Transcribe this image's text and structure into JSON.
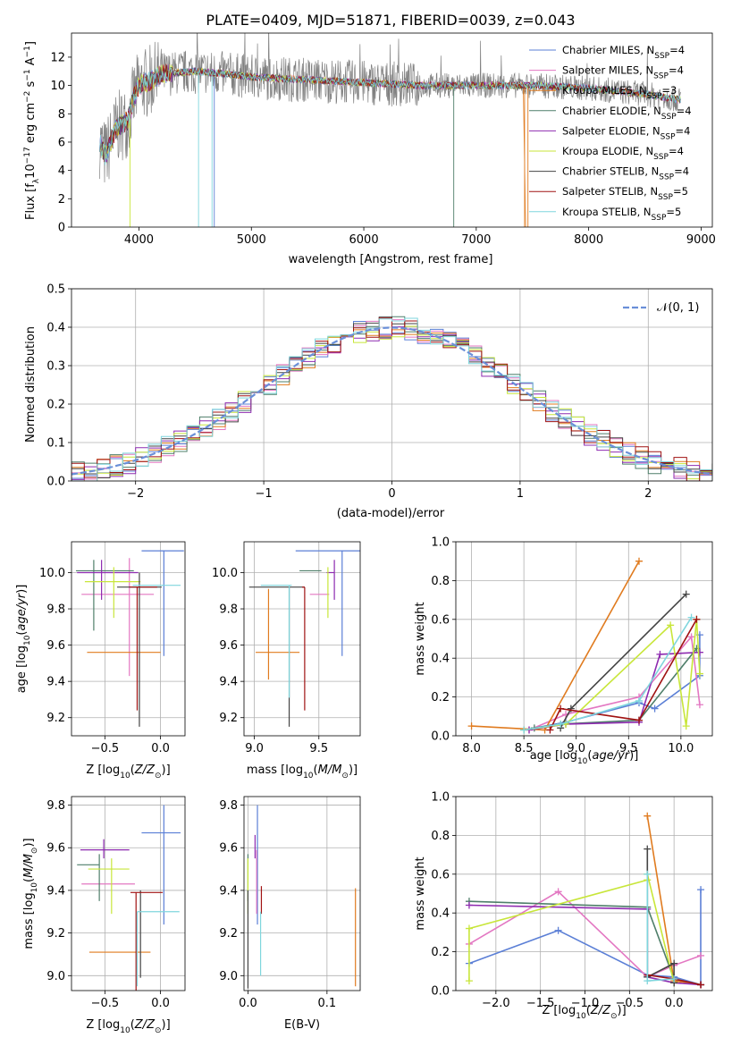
{
  "figure": {
    "title": "PLATE=0409, MJD=51871, FIBERID=0039, z=0.043"
  },
  "palette": {
    "axis": "#000000",
    "grid": "#b0b0b0",
    "normal": "#6a8fd8"
  },
  "models": [
    {
      "name": "Chabrier MILES, N",
      "sub": "SSP",
      "suffix": "=4",
      "color": "#5b7fd6"
    },
    {
      "name": "Salpeter MILES, N",
      "sub": "SSP",
      "suffix": "=4",
      "color": "#e377c2"
    },
    {
      "name": "Kroupa MILES, N",
      "sub": "SSP",
      "suffix": "=3",
      "color": "#e07b1f"
    },
    {
      "name": "Chabrier ELODIE, N",
      "sub": "SSP",
      "suffix": "=4",
      "color": "#4f7f6a"
    },
    {
      "name": "Salpeter ELODIE, N",
      "sub": "SSP",
      "suffix": "=4",
      "color": "#8e2bb0"
    },
    {
      "name": "Kroupa ELODIE, N",
      "sub": "SSP",
      "suffix": "=4",
      "color": "#c8e63a"
    },
    {
      "name": "Chabrier STELIB, N",
      "sub": "SSP",
      "suffix": "=4",
      "color": "#444444"
    },
    {
      "name": "Salpeter STELIB, N",
      "sub": "SSP",
      "suffix": "=5",
      "color": "#a01212"
    },
    {
      "name": "Kroupa STELIB, N",
      "sub": "SSP",
      "suffix": "=5",
      "color": "#7fd6dd"
    }
  ],
  "chart_data": [
    {
      "id": "spectrum",
      "type": "line",
      "xlabel": "wavelength [Angstrom, rest frame]",
      "ylabel": "Flux [f_λ 10^-17 erg cm^-2 s^-1 A^-1]",
      "xlim": [
        3400,
        9100
      ],
      "ylim": [
        0,
        13.7
      ],
      "xticks": [
        4000,
        5000,
        6000,
        7000,
        8000,
        9000
      ],
      "yticks": [
        0,
        2,
        4,
        6,
        8,
        10,
        12
      ],
      "grid": false,
      "legend_position": "upper right",
      "series_note": "observed spectrum (grey) with nine model fits; continuum ~4 at 3650 Å rising to ~10.5-11 at 4200-5000 Å then ~10-9 to 8800 Å",
      "continuum": [
        [
          3650,
          6.0
        ],
        [
          3700,
          5.0
        ],
        [
          3800,
          7.0
        ],
        [
          3900,
          7.5
        ],
        [
          3950,
          9.0
        ],
        [
          4000,
          10.0
        ],
        [
          4100,
          10.3
        ],
        [
          4200,
          10.8
        ],
        [
          4500,
          11.0
        ],
        [
          4800,
          10.8
        ],
        [
          5000,
          10.6
        ],
        [
          5500,
          10.4
        ],
        [
          6000,
          10.2
        ],
        [
          6500,
          10.0
        ],
        [
          7000,
          10.0
        ],
        [
          7500,
          10.0
        ],
        [
          8000,
          9.8
        ],
        [
          8500,
          9.4
        ],
        [
          8800,
          9.0
        ]
      ]
    },
    {
      "id": "residuals",
      "type": "histogram",
      "xlabel": "(data-model)/error",
      "ylabel": "Normed distribution",
      "xlim": [
        -2.5,
        2.5
      ],
      "ylim": [
        0,
        0.5
      ],
      "xticks": [
        -2,
        -1,
        0,
        1,
        2
      ],
      "yticks": [
        0.0,
        0.1,
        0.2,
        0.3,
        0.4,
        0.5
      ],
      "grid": true,
      "legend": [
        "𝒩(0, 1)"
      ],
      "legend_position": "upper right",
      "bin_width": 0.1,
      "reference": "standard normal pdf"
    },
    {
      "id": "z_age",
      "type": "errorbar",
      "xlabel": "Z [log10(Z/Z⊙)]",
      "ylabel": "age [log10(age/yr)]",
      "xlim": [
        -0.8,
        0.22
      ],
      "ylim": [
        9.1,
        10.17
      ],
      "xticks": [
        -0.5,
        0.0
      ],
      "yticks": [
        9.2,
        9.4,
        9.6,
        9.8,
        10.0
      ],
      "grid": true,
      "points": [
        {
          "m": 0,
          "x": 0.03,
          "xerr": [
            0.2,
            0.18
          ],
          "y": 10.12,
          "yerr": [
            0.58,
            0.0
          ]
        },
        {
          "m": 1,
          "x": -0.28,
          "xerr": [
            0.43,
            0.22
          ],
          "y": 9.88,
          "yerr": [
            0.45,
            0.2
          ]
        },
        {
          "m": 2,
          "x": -0.26,
          "xerr": [
            0.4,
            0.26
          ],
          "y": 9.56,
          "yerr": [
            0.0,
            0.0
          ]
        },
        {
          "m": 3,
          "x": -0.6,
          "xerr": [
            0.16,
            0.36
          ],
          "y": 10.01,
          "yerr": [
            0.33,
            0.06
          ]
        },
        {
          "m": 4,
          "x": -0.53,
          "xerr": [
            0.22,
            0.33
          ],
          "y": 10.0,
          "yerr": [
            0.15,
            0.07
          ]
        },
        {
          "m": 5,
          "x": -0.42,
          "xerr": [
            0.26,
            0.24
          ],
          "y": 9.95,
          "yerr": [
            0.2,
            0.08
          ]
        },
        {
          "m": 6,
          "x": -0.19,
          "xerr": [
            0.2,
            0.2
          ],
          "y": 9.92,
          "yerr": [
            0.77,
            0.08
          ]
        },
        {
          "m": 7,
          "x": -0.21,
          "xerr": [
            0.07,
            0.18
          ],
          "y": 9.92,
          "yerr": [
            0.68,
            0.0
          ]
        },
        {
          "m": 8,
          "x": -0.25,
          "xerr": [
            0.0,
            0.43
          ],
          "y": 9.93,
          "yerr": [
            0.0,
            0.0
          ]
        }
      ]
    },
    {
      "id": "mass_age",
      "type": "errorbar",
      "xlabel": "mass [log10(M/M⊙)]",
      "ylabel": "",
      "xlim": [
        8.92,
        9.82
      ],
      "ylim": [
        9.1,
        10.17
      ],
      "xticks": [
        9.0,
        9.5
      ],
      "yticks": [
        9.2,
        9.4,
        9.6,
        9.8,
        10.0
      ],
      "grid": true,
      "points": [
        {
          "m": 0,
          "x": 9.68,
          "xerr": [
            0.36,
            0.15
          ],
          "y": 10.12,
          "yerr": [
            0.58,
            0.0
          ]
        },
        {
          "m": 1,
          "x": 9.55,
          "xerr": [
            0.12,
            0.03
          ],
          "y": 9.88,
          "yerr": [
            0.0,
            0.0
          ]
        },
        {
          "m": 2,
          "x": 9.11,
          "xerr": [
            0.1,
            0.24
          ],
          "y": 9.56,
          "yerr": [
            0.15,
            0.35
          ]
        },
        {
          "m": 3,
          "x": 9.52,
          "xerr": [
            0.17,
            0.0
          ],
          "y": 10.01,
          "yerr": [
            0.0,
            0.0
          ]
        },
        {
          "m": 4,
          "x": 9.62,
          "xerr": [
            0.06,
            0.0
          ],
          "y": 10.0,
          "yerr": [
            0.15,
            0.07
          ]
        },
        {
          "m": 5,
          "x": 9.57,
          "xerr": [
            0.0,
            0.0
          ],
          "y": 9.95,
          "yerr": [
            0.2,
            0.08
          ]
        },
        {
          "m": 6,
          "x": 9.27,
          "xerr": [
            0.31,
            0.12
          ],
          "y": 9.92,
          "yerr": [
            0.77,
            0.0
          ]
        },
        {
          "m": 7,
          "x": 9.39,
          "xerr": [
            0.02,
            0.0
          ],
          "y": 9.92,
          "yerr": [
            0.68,
            0.0
          ]
        },
        {
          "m": 8,
          "x": 9.27,
          "xerr": [
            0.22,
            0.02
          ],
          "y": 9.93,
          "yerr": [
            0.62,
            0.0
          ]
        }
      ]
    },
    {
      "id": "age_weight",
      "type": "line",
      "xlabel": "age [log10(age/yr)]",
      "ylabel": "mass weight",
      "xlim": [
        7.85,
        10.3
      ],
      "ylim": [
        0,
        1.0
      ],
      "xticks": [
        8.0,
        8.5,
        9.0,
        9.5,
        10.0
      ],
      "yticks": [
        0.0,
        0.2,
        0.4,
        0.6,
        0.8,
        1.0
      ],
      "grid": true,
      "series": [
        {
          "m": 0,
          "x": [
            8.5,
            8.9,
            9.6,
            9.75,
            10.18,
            10.18
          ],
          "y": [
            0.03,
            0.07,
            0.17,
            0.14,
            0.31,
            0.52
          ]
        },
        {
          "m": 1,
          "x": [
            8.55,
            8.9,
            9.6,
            10.1,
            10.18
          ],
          "y": [
            0.03,
            0.11,
            0.2,
            0.51,
            0.16
          ]
        },
        {
          "m": 2,
          "x": [
            8.0,
            8.7,
            9.6
          ],
          "y": [
            0.05,
            0.03,
            0.9
          ]
        },
        {
          "m": 3,
          "x": [
            8.6,
            8.85,
            9.6,
            10.15
          ],
          "y": [
            0.04,
            0.06,
            0.08,
            0.45
          ]
        },
        {
          "m": 4,
          "x": [
            8.55,
            8.9,
            9.6,
            9.8,
            10.18
          ],
          "y": [
            0.03,
            0.06,
            0.07,
            0.42,
            0.43
          ]
        },
        {
          "m": 5,
          "x": [
            8.5,
            8.9,
            9.9,
            10.05,
            10.15,
            10.18
          ],
          "y": [
            0.03,
            0.06,
            0.57,
            0.05,
            0.6,
            0.32
          ]
        },
        {
          "m": 6,
          "x": [
            8.85,
            8.95,
            10.05
          ],
          "y": [
            0.04,
            0.14,
            0.73
          ]
        },
        {
          "m": 7,
          "x": [
            8.75,
            8.85,
            9.6,
            10.15
          ],
          "y": [
            0.03,
            0.14,
            0.08,
            0.6
          ]
        },
        {
          "m": 8,
          "x": [
            8.5,
            8.85,
            9.6,
            10.1
          ],
          "y": [
            0.03,
            0.06,
            0.18,
            0.61
          ]
        }
      ]
    },
    {
      "id": "z_mass",
      "type": "errorbar",
      "xlabel": "Z [log10(Z/Z⊙)]",
      "ylabel": "mass [log10(M/M⊙)]",
      "xlim": [
        -0.8,
        0.22
      ],
      "ylim": [
        8.93,
        9.84
      ],
      "xticks": [
        -0.5,
        0.0
      ],
      "yticks": [
        9.0,
        9.2,
        9.4,
        9.6,
        9.8
      ],
      "grid": true,
      "points": [
        {
          "m": 0,
          "x": 0.03,
          "xerr": [
            0.2,
            0.15
          ],
          "y": 9.67,
          "yerr": [
            0.43,
            0.13
          ]
        },
        {
          "m": 1,
          "x": -0.45,
          "xerr": [
            0.26,
            0.22
          ],
          "y": 9.43,
          "yerr": [
            0.0,
            0.0
          ]
        },
        {
          "m": 2,
          "x": -0.26,
          "xerr": [
            0.38,
            0.17
          ],
          "y": 9.11,
          "yerr": [
            0.0,
            0.0
          ]
        },
        {
          "m": 3,
          "x": -0.55,
          "xerr": [
            0.2,
            0.0
          ],
          "y": 9.52,
          "yerr": [
            0.17,
            0.05
          ]
        },
        {
          "m": 4,
          "x": -0.51,
          "xerr": [
            0.21,
            0.23
          ],
          "y": 9.59,
          "yerr": [
            0.04,
            0.05
          ]
        },
        {
          "m": 5,
          "x": -0.44,
          "xerr": [
            0.21,
            0.16
          ],
          "y": 9.5,
          "yerr": [
            0.21,
            0.05
          ]
        },
        {
          "m": 6,
          "x": -0.18,
          "xerr": [
            0.0,
            0.0
          ],
          "y": 9.29,
          "yerr": [
            0.3,
            0.11
          ]
        },
        {
          "m": 7,
          "x": -0.22,
          "xerr": [
            0.05,
            0.24
          ],
          "y": 9.39,
          "yerr": [
            0.46,
            0.0
          ]
        },
        {
          "m": 8,
          "x": -0.21,
          "xerr": [
            0.0,
            0.38
          ],
          "y": 9.3,
          "yerr": [
            0.35,
            0.0
          ]
        }
      ]
    },
    {
      "id": "ebv_mass",
      "type": "errorbar",
      "xlabel": "E(B-V)",
      "ylabel": "",
      "xlim": [
        -0.005,
        0.142
      ],
      "ylim": [
        8.93,
        9.84
      ],
      "xticks": [
        0.0,
        0.1
      ],
      "yticks": [
        9.0,
        9.2,
        9.4,
        9.6,
        9.8
      ],
      "grid": true,
      "points": [
        {
          "m": 0,
          "x": 0.012,
          "xerr": [
            0,
            0
          ],
          "y": 9.67,
          "yerr": [
            0.43,
            0.13
          ]
        },
        {
          "m": 1,
          "x": 0.011,
          "xerr": [
            0,
            0
          ],
          "y": 9.43,
          "yerr": [
            0.14,
            0.16
          ]
        },
        {
          "m": 2,
          "x": 0.136,
          "xerr": [
            0,
            0
          ],
          "y": 9.11,
          "yerr": [
            0.16,
            0.3
          ]
        },
        {
          "m": 3,
          "x": 0.0,
          "xerr": [
            0,
            0
          ],
          "y": 9.52,
          "yerr": [
            0.17,
            0.05
          ]
        },
        {
          "m": 4,
          "x": 0.009,
          "xerr": [
            0,
            0
          ],
          "y": 9.59,
          "yerr": [
            0.04,
            0.07
          ]
        },
        {
          "m": 5,
          "x": 0.0,
          "xerr": [
            0,
            0
          ],
          "y": 9.5,
          "yerr": [
            0.21,
            0.05
          ]
        },
        {
          "m": 6,
          "x": 0.0,
          "xerr": [
            0,
            0
          ],
          "y": 9.29,
          "yerr": [
            0.35,
            0.11
          ]
        },
        {
          "m": 7,
          "x": 0.017,
          "xerr": [
            0,
            0
          ],
          "y": 9.39,
          "yerr": [
            0.1,
            0.03
          ]
        },
        {
          "m": 8,
          "x": 0.016,
          "xerr": [
            0,
            0
          ],
          "y": 9.3,
          "yerr": [
            0.3,
            0.0
          ]
        }
      ]
    },
    {
      "id": "z_weight",
      "type": "line",
      "xlabel": "Z [log10(Z/Z⊙)]",
      "ylabel": "mass weight",
      "xlim": [
        -2.45,
        0.43
      ],
      "ylim": [
        0,
        1.0
      ],
      "xticks": [
        -2.0,
        -1.5,
        -1.0,
        -0.5,
        0.0
      ],
      "yticks": [
        0.0,
        0.2,
        0.4,
        0.6,
        0.8,
        1.0
      ],
      "grid": true,
      "series": [
        {
          "m": 0,
          "x": [
            -2.3,
            -1.3,
            -0.3,
            0.0,
            0.3,
            0.3
          ],
          "y": [
            0.14,
            0.31,
            0.08,
            0.07,
            0.03,
            0.52
          ]
        },
        {
          "m": 1,
          "x": [
            -2.3,
            -1.3,
            -0.3,
            0.0,
            0.3
          ],
          "y": [
            0.24,
            0.51,
            0.07,
            0.13,
            0.18
          ]
        },
        {
          "m": 2,
          "x": [
            -0.3,
            0.0,
            0.3
          ],
          "y": [
            0.9,
            0.05,
            0.03
          ]
        },
        {
          "m": 3,
          "x": [
            -2.3,
            -0.3,
            0.0,
            0.3
          ],
          "y": [
            0.46,
            0.43,
            0.06,
            0.03
          ]
        },
        {
          "m": 4,
          "x": [
            -2.3,
            -0.3,
            -0.3,
            0.0,
            0.3
          ],
          "y": [
            0.44,
            0.42,
            0.07,
            0.04,
            0.03
          ]
        },
        {
          "m": 5,
          "x": [
            -2.3,
            -2.3,
            -0.3,
            -0.3,
            0.0
          ],
          "y": [
            0.05,
            0.32,
            0.57,
            0.6,
            0.04
          ]
        },
        {
          "m": 6,
          "x": [
            -0.3,
            -0.3,
            0.0,
            0.0
          ],
          "y": [
            0.73,
            0.07,
            0.14,
            0.04
          ]
        },
        {
          "m": 7,
          "x": [
            -0.3,
            0.0,
            0.3
          ],
          "y": [
            0.08,
            0.06,
            0.03
          ]
        },
        {
          "m": 8,
          "x": [
            -0.3,
            -0.3,
            0.0
          ],
          "y": [
            0.6,
            0.05,
            0.06
          ]
        }
      ]
    }
  ]
}
